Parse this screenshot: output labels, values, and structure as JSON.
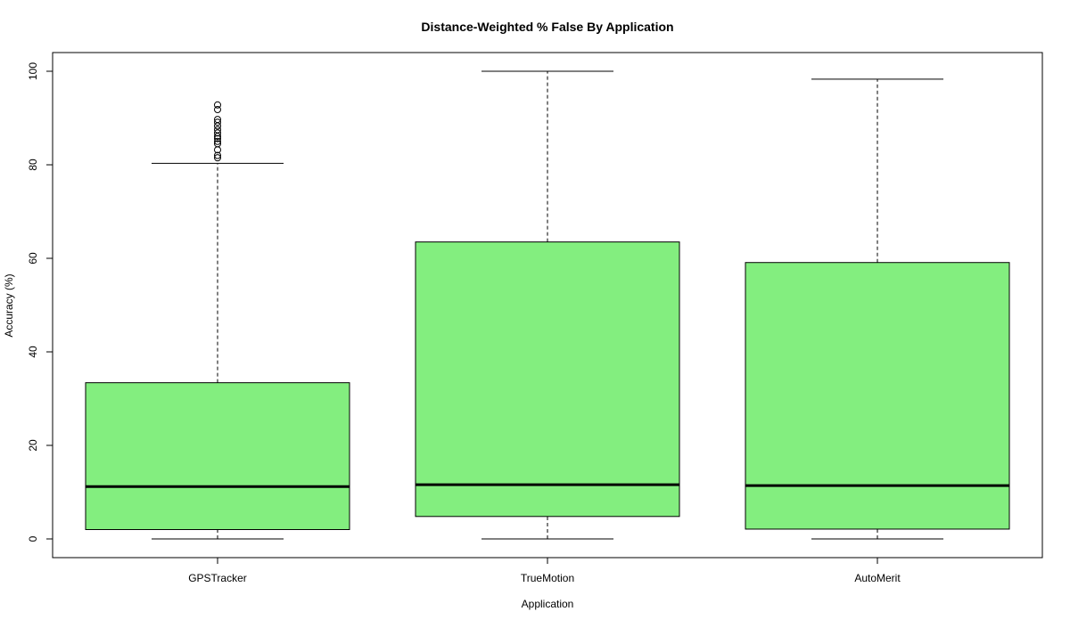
{
  "chart_data": {
    "type": "box",
    "title": "Distance-Weighted % False By Application",
    "xlabel": "Application",
    "ylabel": "Accuracy (%)",
    "ylim": [
      -4,
      104
    ],
    "yticks": [
      0,
      20,
      40,
      60,
      80,
      100
    ],
    "categories": [
      "GPSTracker",
      "TrueMotion",
      "AutoMerit"
    ],
    "box_color": "#83ee7f",
    "boxes": [
      {
        "name": "GPSTracker",
        "whisker_low": 0,
        "q1": 2,
        "median": 11.2,
        "q3": 33.4,
        "whisker_high": 80.3,
        "outliers": [
          81.5,
          82.0,
          83.2,
          84.5,
          85.0,
          85.6,
          86.1,
          86.8,
          87.5,
          88.3,
          89.1,
          89.7,
          91.8,
          92.8
        ]
      },
      {
        "name": "TrueMotion",
        "whisker_low": 0,
        "q1": 4.8,
        "median": 11.6,
        "q3": 63.5,
        "whisker_high": 100,
        "outliers": []
      },
      {
        "name": "AutoMerit",
        "whisker_low": 0,
        "q1": 2.1,
        "median": 11.4,
        "q3": 59.1,
        "whisker_high": 98.3,
        "outliers": []
      }
    ]
  }
}
